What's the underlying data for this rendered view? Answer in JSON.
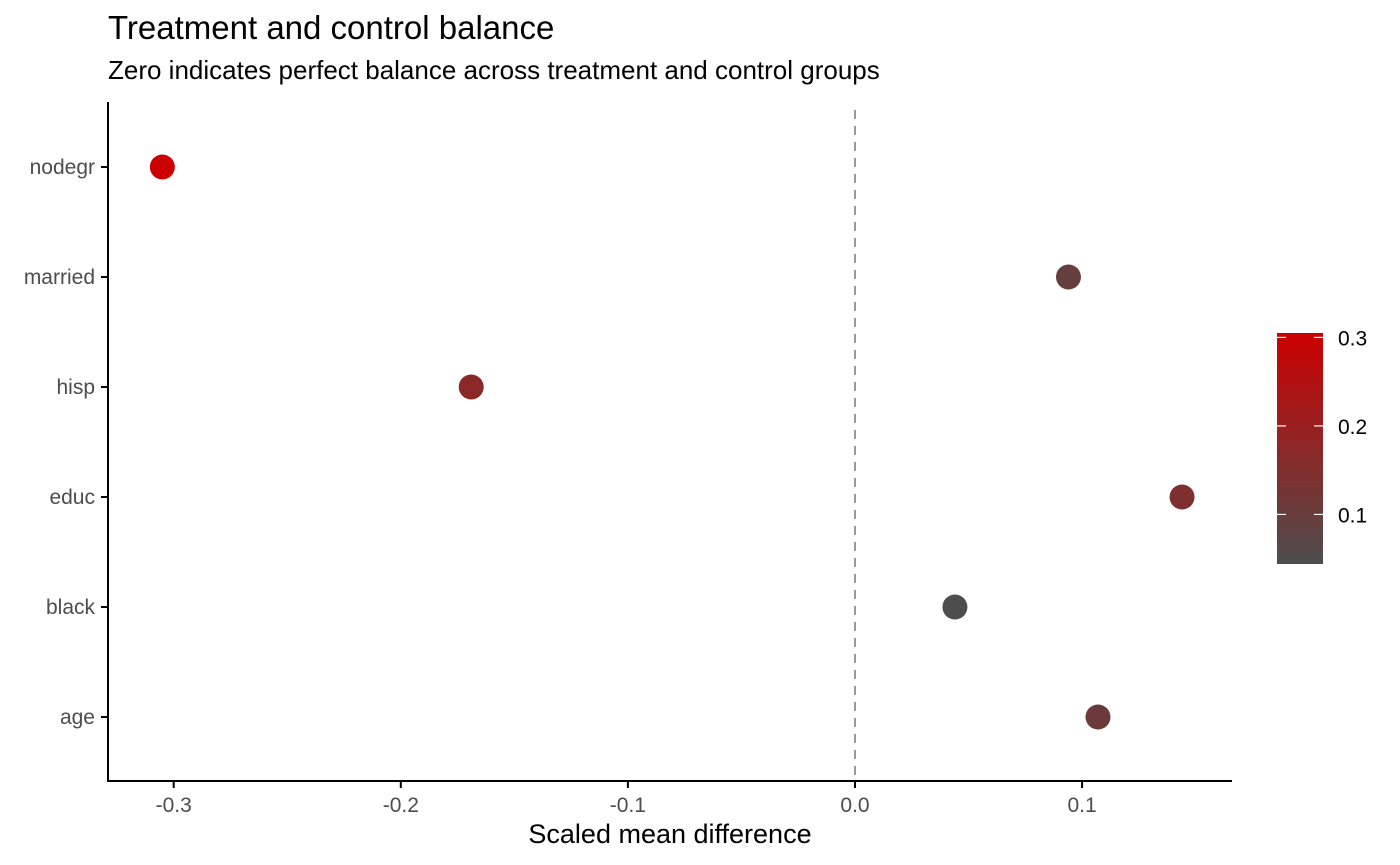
{
  "chart_data": {
    "type": "scatter",
    "title": "Treatment and control balance",
    "subtitle": "Zero indicates perfect balance across treatment and control groups",
    "xlabel": "Scaled mean difference",
    "ylabel": "",
    "xlim": [
      -0.33,
      0.165
    ],
    "x_ticks": [
      -0.3,
      -0.2,
      -0.1,
      0.0,
      0.1
    ],
    "x_tick_labels": [
      "-0.3",
      "-0.2",
      "-0.1",
      "0.0",
      "0.1"
    ],
    "categories": [
      "age",
      "black",
      "educ",
      "hisp",
      "married",
      "nodegr"
    ],
    "points": [
      {
        "label": "nodegr",
        "x": -0.305,
        "color_value": 0.305
      },
      {
        "label": "married",
        "x": 0.094,
        "color_value": 0.094
      },
      {
        "label": "hisp",
        "x": -0.169,
        "color_value": 0.169
      },
      {
        "label": "educ",
        "x": 0.144,
        "color_value": 0.144
      },
      {
        "label": "black",
        "x": 0.044,
        "color_value": 0.044
      },
      {
        "label": "age",
        "x": 0.107,
        "color_value": 0.107
      }
    ],
    "reference_line": {
      "x": 0,
      "style": "dashed",
      "color": "#999999"
    },
    "legend": {
      "position": "right",
      "type": "colorbar",
      "ticks": [
        0.1,
        0.2,
        0.3
      ],
      "tick_labels": [
        "0.1",
        "0.2",
        "0.3"
      ],
      "range": [
        0.044,
        0.305
      ],
      "low_color": "#4d4d4d",
      "high_color": "#cc0000"
    },
    "grid": false
  }
}
